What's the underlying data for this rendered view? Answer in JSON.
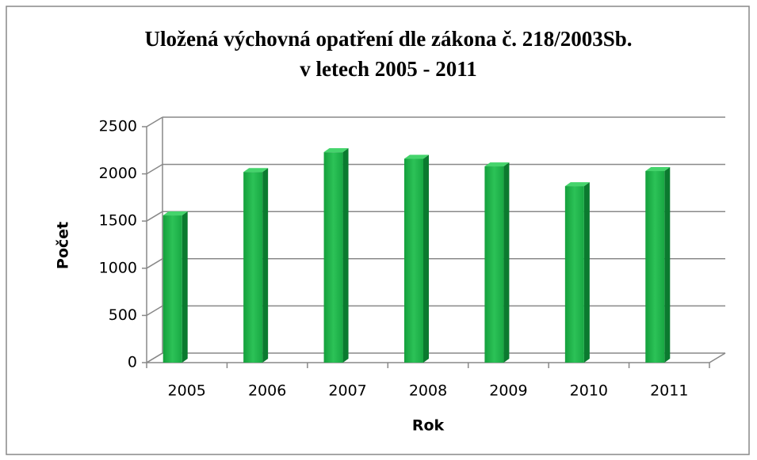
{
  "chart_data": {
    "type": "bar3d",
    "title": [
      "Uložená výchovná opatření dle zákona č. 218/2003Sb.",
      "v letech 2005 - 2011"
    ],
    "x_label": "Rok",
    "y_label": "Počet",
    "categories": [
      "2005",
      "2006",
      "2007",
      "2008",
      "2009",
      "2010",
      "2011"
    ],
    "values": [
      1560,
      2020,
      2230,
      2160,
      2080,
      1870,
      2030
    ],
    "color": "#1fb04a",
    "ylim": [
      0,
      2500
    ],
    "yticks": [
      0,
      500,
      1000,
      1500,
      2000,
      2500
    ],
    "grid": true
  }
}
